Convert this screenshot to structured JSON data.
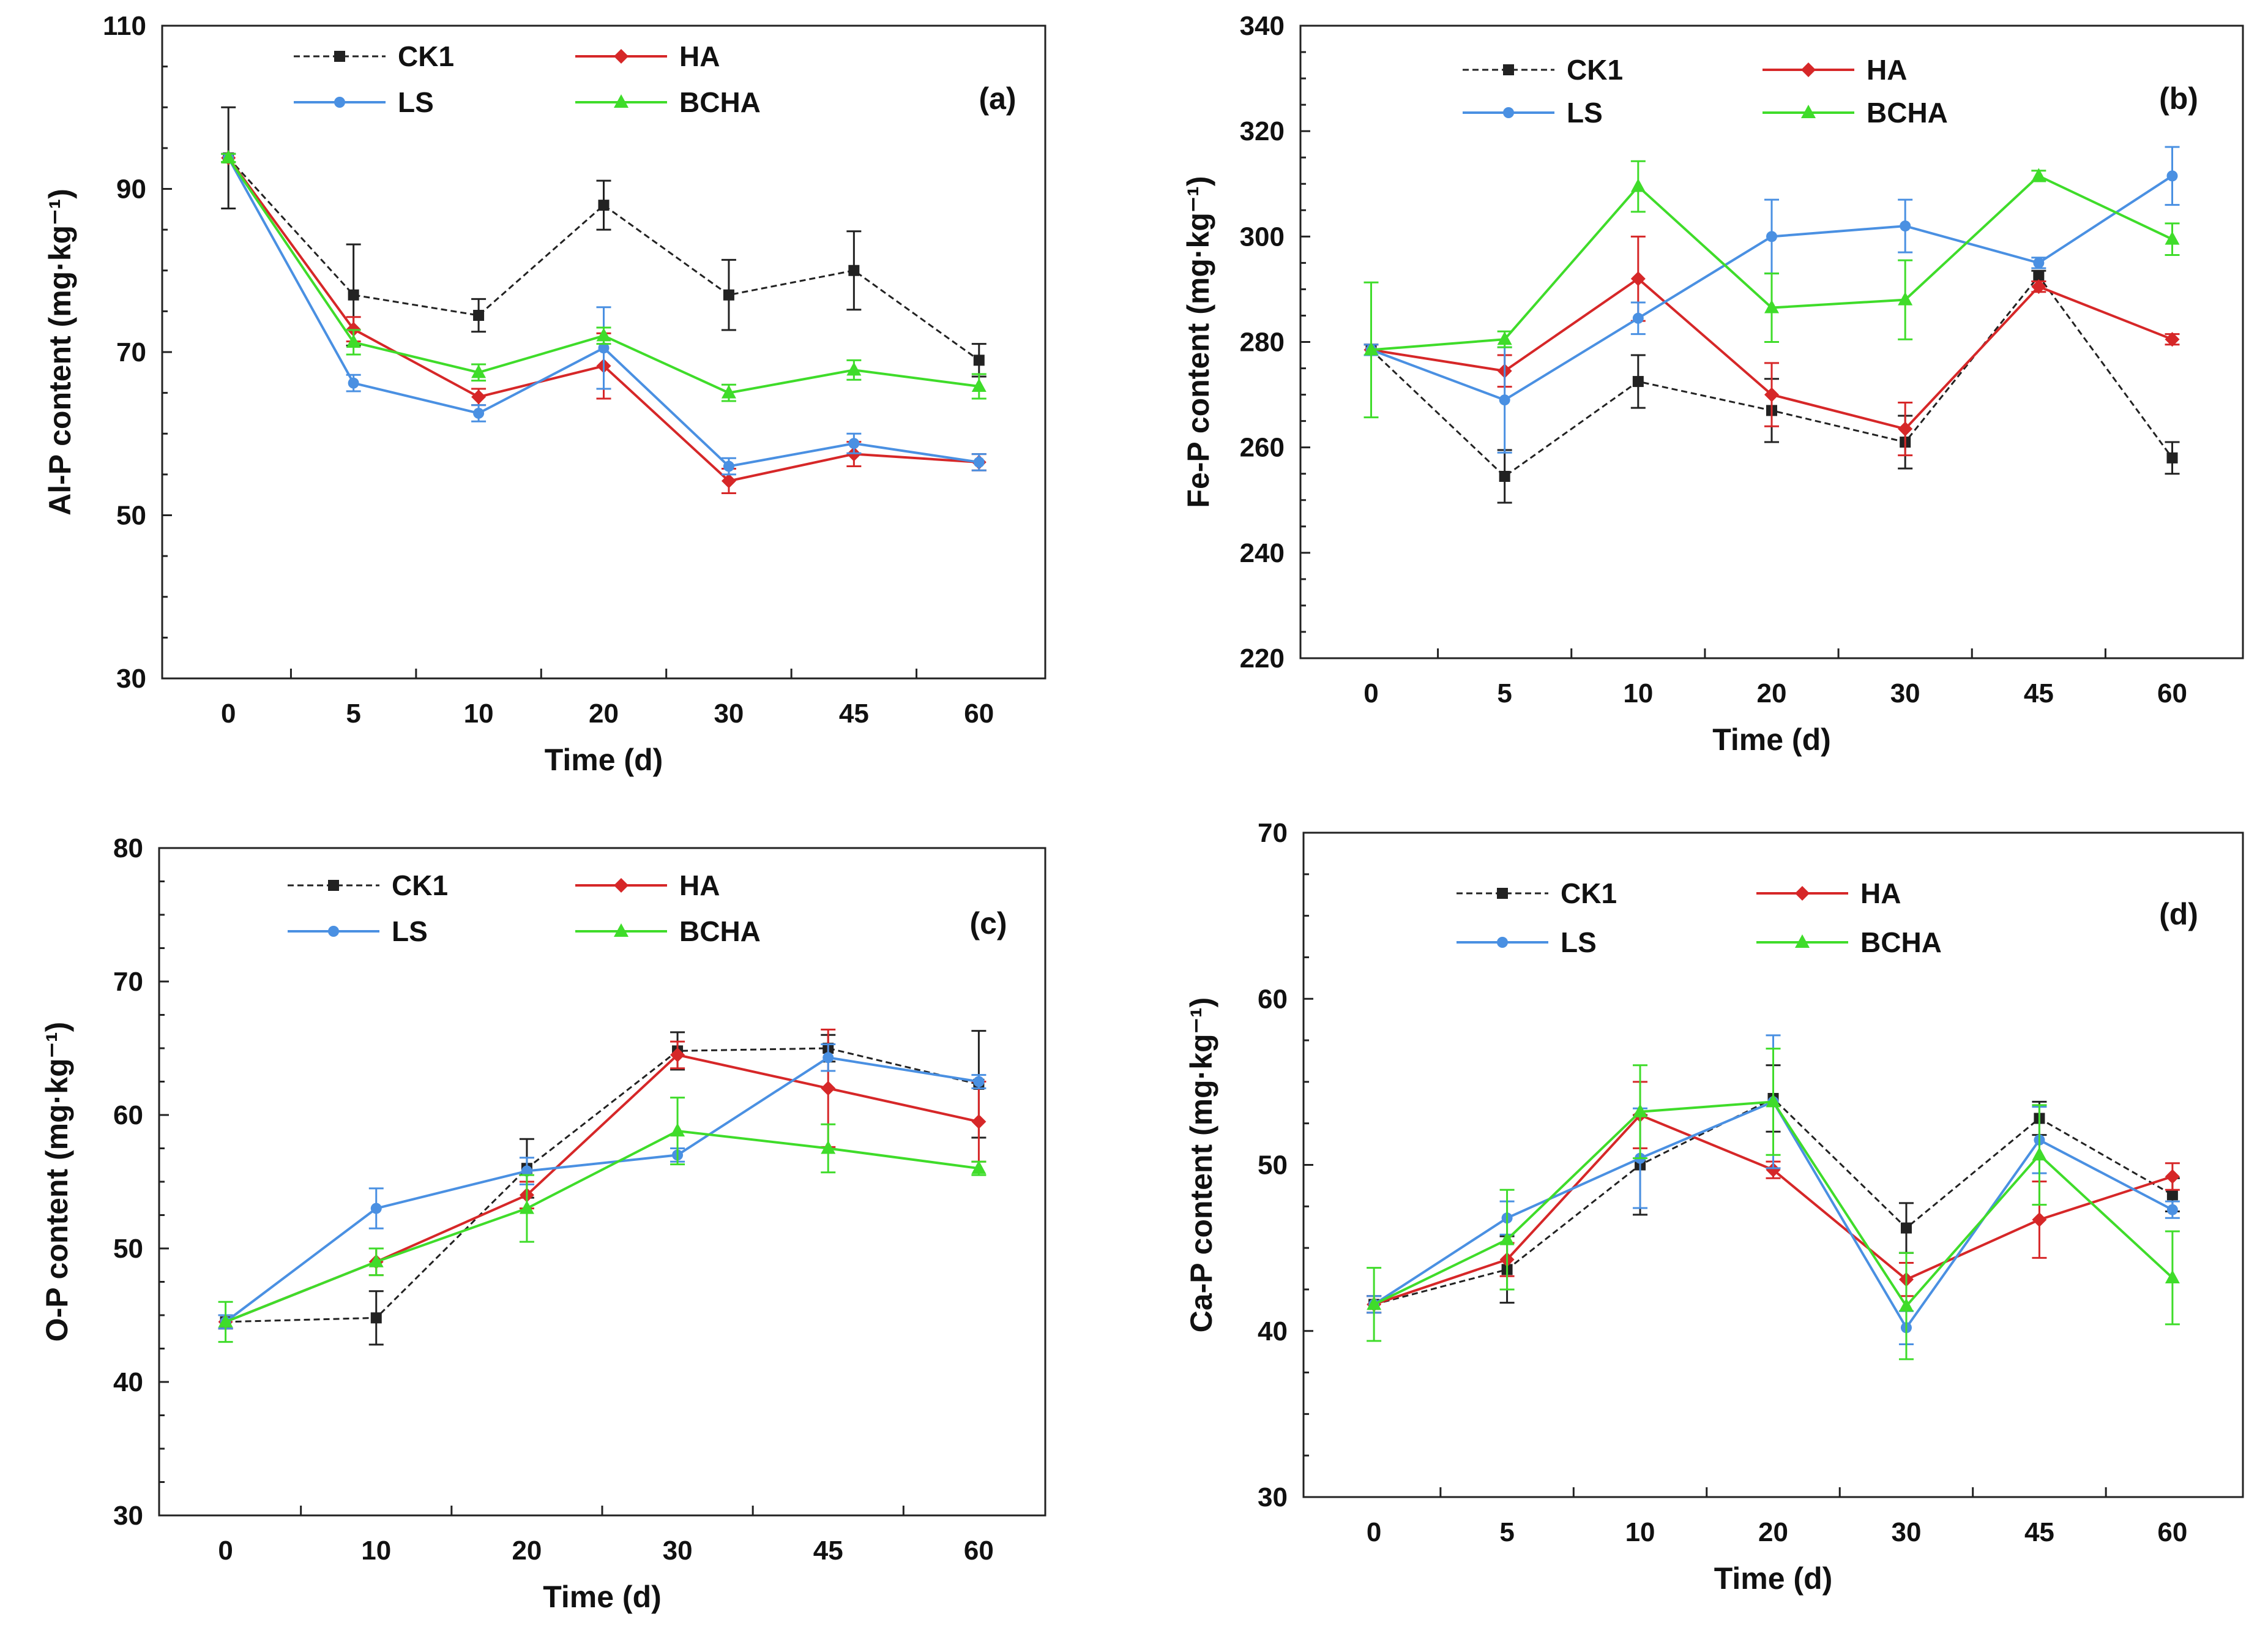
{
  "figure": {
    "colors": {
      "CK1": "#222222",
      "HA": "#d62728",
      "LS": "#4a90e2",
      "BCHA": "#3fdc2a"
    }
  },
  "chart_data": [
    {
      "type": "line",
      "panel_label": "(a)",
      "title": "",
      "xlabel": "Time (d)",
      "ylabel": "Al-P content (mg·kg⁻¹)",
      "categories": [
        "0",
        "5",
        "10",
        "20",
        "30",
        "45",
        "60"
      ],
      "ylim": [
        30,
        110
      ],
      "yticks": [
        "30",
        "50",
        "70",
        "90",
        "110"
      ],
      "legend": "top-center",
      "series": [
        {
          "name": "CK1",
          "values": [
            93.8,
            77.0,
            74.5,
            88.0,
            77.0,
            80.0,
            69.0
          ],
          "errors": [
            6.2,
            6.2,
            2.0,
            3.0,
            4.3,
            4.8,
            2.0
          ]
        },
        {
          "name": "HA",
          "values": [
            93.8,
            72.8,
            64.5,
            68.3,
            54.2,
            57.5,
            56.5
          ],
          "errors": [
            0.5,
            1.5,
            1.0,
            4.0,
            1.5,
            1.5,
            1.0
          ]
        },
        {
          "name": "LS",
          "values": [
            93.8,
            66.2,
            62.5,
            70.5,
            56.0,
            58.8,
            56.5
          ],
          "errors": [
            0.5,
            1.0,
            1.0,
            5.0,
            1.0,
            1.2,
            1.0
          ]
        },
        {
          "name": "BCHA",
          "values": [
            93.8,
            71.2,
            67.5,
            72.0,
            65.0,
            67.8,
            65.8
          ],
          "errors": [
            0.5,
            1.5,
            1.0,
            1.0,
            1.0,
            1.2,
            1.5
          ]
        }
      ]
    },
    {
      "type": "line",
      "panel_label": "(b)",
      "title": "",
      "xlabel": "Time (d)",
      "ylabel": "Fe-P content (mg·kg⁻¹)",
      "categories": [
        "0",
        "5",
        "10",
        "20",
        "30",
        "45",
        "60"
      ],
      "ylim": [
        220,
        340
      ],
      "yticks": [
        "220",
        "240",
        "260",
        "280",
        "300",
        "320",
        "340"
      ],
      "legend": "top-center",
      "series": [
        {
          "name": "CK1",
          "values": [
            278.5,
            254.5,
            272.5,
            267.0,
            261.0,
            292.5,
            258.0
          ],
          "errors": [
            1.0,
            5.0,
            5.0,
            6.0,
            5.0,
            1.0,
            3.0
          ]
        },
        {
          "name": "HA",
          "values": [
            278.5,
            274.5,
            292.0,
            270.0,
            263.5,
            290.5,
            280.5
          ],
          "errors": [
            1.0,
            3.0,
            8.0,
            6.0,
            5.0,
            1.0,
            1.0
          ]
        },
        {
          "name": "LS",
          "values": [
            278.5,
            269.0,
            284.5,
            300.0,
            302.0,
            295.0,
            311.5
          ],
          "errors": [
            1.0,
            10.0,
            3.0,
            7.0,
            5.0,
            1.0,
            5.5
          ]
        },
        {
          "name": "BCHA",
          "values": [
            278.5,
            280.5,
            309.5,
            286.5,
            288.0,
            311.5,
            299.5
          ],
          "errors": [
            12.8,
            1.5,
            4.8,
            6.5,
            7.5,
            1.0,
            3.0
          ]
        }
      ]
    },
    {
      "type": "line",
      "panel_label": "(c)",
      "title": "",
      "xlabel": "Time (d)",
      "ylabel": "O-P content (mg·kg⁻¹)",
      "categories": [
        "0",
        "10",
        "20",
        "30",
        "45",
        "60"
      ],
      "ylim": [
        30,
        80
      ],
      "yticks": [
        "30",
        "40",
        "50",
        "60",
        "70",
        "80"
      ],
      "legend": "top-center",
      "series": [
        {
          "name": "CK1",
          "values": [
            44.5,
            44.8,
            56.0,
            64.8,
            65.0,
            62.3
          ],
          "errors": [
            0.5,
            2.0,
            2.2,
            1.4,
            1.0,
            4.0
          ]
        },
        {
          "name": "HA",
          "values": [
            44.5,
            49.0,
            54.0,
            64.5,
            62.0,
            59.5
          ],
          "errors": [
            0.5,
            1.0,
            1.0,
            1.0,
            4.4,
            3.0
          ]
        },
        {
          "name": "LS",
          "values": [
            44.5,
            53.0,
            55.8,
            57.0,
            64.3,
            62.5
          ],
          "errors": [
            0.5,
            1.5,
            1.0,
            0.5,
            1.0,
            0.5
          ]
        },
        {
          "name": "BCHA",
          "values": [
            44.5,
            49.0,
            53.0,
            58.8,
            57.5,
            56.0
          ],
          "errors": [
            1.5,
            1.0,
            2.5,
            2.5,
            1.8,
            0.5
          ]
        }
      ]
    },
    {
      "type": "line",
      "panel_label": "(d)",
      "title": "",
      "xlabel": "Time (d)",
      "ylabel": "Ca-P content (mg·kg⁻¹)",
      "categories": [
        "0",
        "5",
        "10",
        "20",
        "30",
        "45",
        "60"
      ],
      "ylim": [
        30,
        70
      ],
      "yticks": [
        "30",
        "40",
        "50",
        "60",
        "70"
      ],
      "legend": "top-center",
      "series": [
        {
          "name": "CK1",
          "values": [
            41.6,
            43.7,
            50.0,
            54.0,
            46.2,
            52.8,
            48.2
          ],
          "errors": [
            0.5,
            2.0,
            3.0,
            2.0,
            1.5,
            1.0,
            1.0
          ]
        },
        {
          "name": "HA",
          "values": [
            41.6,
            44.3,
            53.0,
            49.7,
            43.1,
            46.7,
            49.3
          ],
          "errors": [
            0.5,
            1.0,
            2.0,
            0.5,
            1.0,
            2.3,
            0.8
          ]
        },
        {
          "name": "LS",
          "values": [
            41.6,
            46.8,
            50.4,
            53.8,
            40.2,
            51.5,
            47.3
          ],
          "errors": [
            0.5,
            1.0,
            3.0,
            4.0,
            1.0,
            2.0,
            0.5
          ]
        },
        {
          "name": "BCHA",
          "values": [
            41.6,
            45.5,
            53.2,
            53.8,
            41.5,
            50.6,
            43.2
          ],
          "errors": [
            2.2,
            3.0,
            2.8,
            3.2,
            3.2,
            3.0,
            2.8
          ]
        }
      ]
    }
  ]
}
